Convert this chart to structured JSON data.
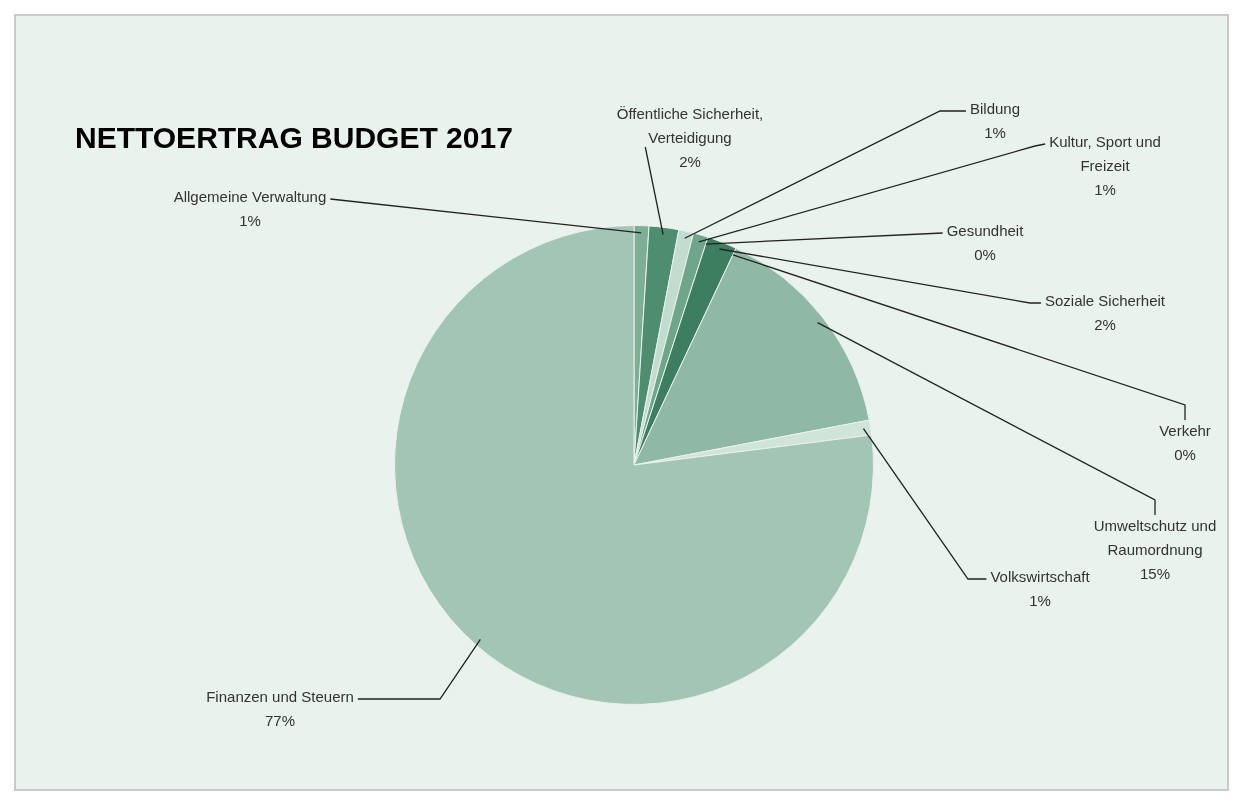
{
  "chart_data": {
    "type": "pie",
    "title": "NETTOERTRAG BUDGET 2017",
    "categories": [
      "Allgemeine Verwaltung",
      "Öffentliche Sicherheit, Verteidigung",
      "Bildung",
      "Kultur, Sport und Freizeit",
      "Gesundheit",
      "Soziale Sicherheit",
      "Verkehr",
      "Umweltschutz und Raumordnung",
      "Volkswirtschaft",
      "Finanzen und Steuern"
    ],
    "values": [
      1,
      2,
      1,
      1,
      0,
      2,
      0,
      15,
      1,
      77
    ],
    "value_labels": [
      "1%",
      "2%",
      "1%",
      "1%",
      "0%",
      "2%",
      "0%",
      "15%",
      "1%",
      "77%"
    ],
    "colors": [
      "#7fae97",
      "#4f8d70",
      "#c2dccf",
      "#6fa58b",
      "#95bfaa",
      "#3d7d60",
      "#b9d6c7",
      "#8fb9a4",
      "#d0e4d9",
      "#a3c5b4"
    ],
    "legend": false
  }
}
